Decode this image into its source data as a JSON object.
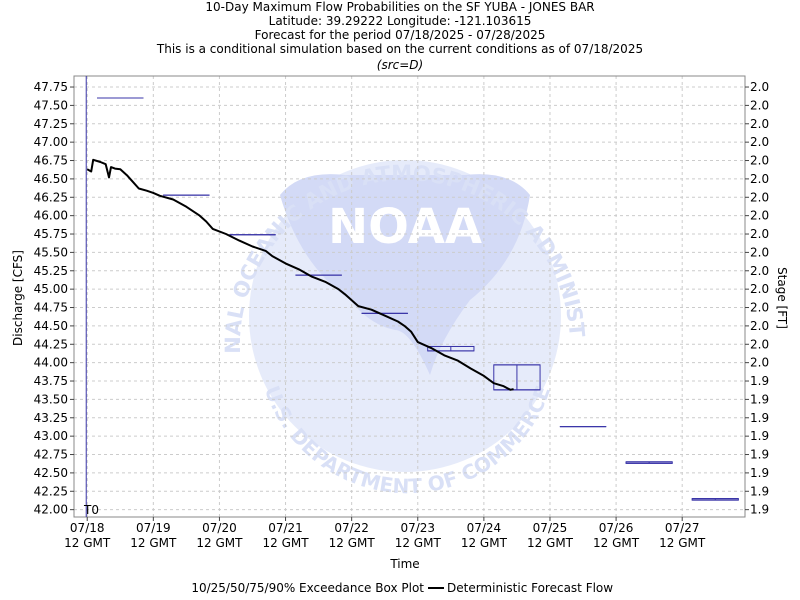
{
  "chart_data": {
    "type": "line",
    "title_lines": [
      "10-Day Maximum Flow Probabilities on the SF YUBA - JONES BAR",
      "Latitude: 39.29222 Longitude: -121.103615",
      "Forecast for the period 07/18/2025 - 07/28/2025",
      "This is a conditional simulation based on the current conditions as of 07/18/2025"
    ],
    "subtitle": "(src=D)",
    "xlabel": "Time",
    "ylabel": "Discharge [CFS]",
    "y2label": "Stage [FT]",
    "ylim": [
      41.9,
      47.9
    ],
    "xlim_days": [
      -0.2,
      9.95
    ],
    "grid": true,
    "t0_label": "T0",
    "x_ticks": [
      {
        "day": 0,
        "line1": "07/18",
        "line2": "12 GMT"
      },
      {
        "day": 1,
        "line1": "07/19",
        "line2": "12 GMT"
      },
      {
        "day": 2,
        "line1": "07/20",
        "line2": "12 GMT"
      },
      {
        "day": 3,
        "line1": "07/21",
        "line2": "12 GMT"
      },
      {
        "day": 4,
        "line1": "07/22",
        "line2": "12 GMT"
      },
      {
        "day": 5,
        "line1": "07/23",
        "line2": "12 GMT"
      },
      {
        "day": 6,
        "line1": "07/24",
        "line2": "12 GMT"
      },
      {
        "day": 7,
        "line1": "07/25",
        "line2": "12 GMT"
      },
      {
        "day": 8,
        "line1": "07/26",
        "line2": "12 GMT"
      },
      {
        "day": 9,
        "line1": "07/27",
        "line2": "12 GMT"
      }
    ],
    "y_ticks": [
      "42.00",
      "42.25",
      "42.50",
      "42.75",
      "43.00",
      "43.25",
      "43.50",
      "43.75",
      "44.00",
      "44.25",
      "44.50",
      "44.75",
      "45.00",
      "45.25",
      "45.50",
      "45.75",
      "46.00",
      "46.25",
      "46.50",
      "46.75",
      "47.00",
      "47.25",
      "47.50",
      "47.75"
    ],
    "y2_ticks": [
      "1.9",
      "1.9",
      "1.9",
      "1.9",
      "1.9",
      "1.9",
      "1.9",
      "1.9",
      "2.0",
      "2.0",
      "2.0",
      "2.0",
      "2.0",
      "2.0",
      "2.0",
      "2.0",
      "2.0",
      "2.0",
      "2.0",
      "2.0",
      "2.0",
      "2.0",
      "2.0",
      "2.0"
    ],
    "exceedance_boxes": [
      {
        "day_start": 0.15,
        "day_end": 0.85,
        "p10": 47.6,
        "p25": 47.6,
        "p50": 47.6,
        "p75": 47.6,
        "p90": 47.6
      },
      {
        "day_start": 1.15,
        "day_end": 1.85,
        "p10": 46.28,
        "p25": 46.28,
        "p50": 46.28,
        "p75": 46.28,
        "p90": 46.28
      },
      {
        "day_start": 2.15,
        "day_end": 2.85,
        "p10": 45.74,
        "p25": 45.74,
        "p50": 45.74,
        "p75": 45.74,
        "p90": 45.74
      },
      {
        "day_start": 3.15,
        "day_end": 3.85,
        "p10": 45.19,
        "p25": 45.19,
        "p50": 45.19,
        "p75": 45.19,
        "p90": 45.19
      },
      {
        "day_start": 4.15,
        "day_end": 4.85,
        "p10": 44.67,
        "p25": 44.67,
        "p50": 44.67,
        "p75": 44.67,
        "p90": 44.67
      },
      {
        "day_start": 5.15,
        "day_end": 5.85,
        "p10": 44.16,
        "p25": 44.16,
        "p50": 44.22,
        "p75": 44.22,
        "p90": 44.22
      },
      {
        "day_start": 6.15,
        "day_end": 6.85,
        "p10": 43.63,
        "p25": 43.63,
        "p50": 43.63,
        "p75": 43.97,
        "p90": 43.97
      },
      {
        "day_start": 7.15,
        "day_end": 7.85,
        "p10": 43.13,
        "p25": 43.13,
        "p50": 43.13,
        "p75": 43.13,
        "p90": 43.13
      },
      {
        "day_start": 8.15,
        "day_end": 8.85,
        "p10": 42.63,
        "p25": 42.63,
        "p50": 42.65,
        "p75": 42.65,
        "p90": 42.65
      },
      {
        "day_start": 9.15,
        "day_end": 9.85,
        "p10": 42.13,
        "p25": 42.13,
        "p50": 42.15,
        "p75": 42.15,
        "p90": 42.15
      }
    ],
    "deterministic_flow": [
      [
        0.0,
        46.63
      ],
      [
        0.06,
        46.6
      ],
      [
        0.09,
        46.76
      ],
      [
        0.2,
        46.73
      ],
      [
        0.28,
        46.7
      ],
      [
        0.33,
        46.52
      ],
      [
        0.36,
        46.66
      ],
      [
        0.42,
        46.64
      ],
      [
        0.5,
        46.63
      ],
      [
        0.6,
        46.55
      ],
      [
        0.7,
        46.45
      ],
      [
        0.78,
        46.37
      ],
      [
        0.9,
        46.34
      ],
      [
        1.0,
        46.31
      ],
      [
        1.1,
        46.27
      ],
      [
        1.3,
        46.22
      ],
      [
        1.5,
        46.12
      ],
      [
        1.7,
        46.0
      ],
      [
        1.8,
        45.92
      ],
      [
        1.9,
        45.82
      ],
      [
        2.1,
        45.75
      ],
      [
        2.3,
        45.66
      ],
      [
        2.5,
        45.58
      ],
      [
        2.7,
        45.52
      ],
      [
        2.8,
        45.45
      ],
      [
        3.0,
        45.35
      ],
      [
        3.2,
        45.27
      ],
      [
        3.4,
        45.17
      ],
      [
        3.6,
        45.1
      ],
      [
        3.8,
        45.0
      ],
      [
        3.9,
        44.93
      ],
      [
        4.0,
        44.85
      ],
      [
        4.1,
        44.77
      ],
      [
        4.3,
        44.72
      ],
      [
        4.5,
        44.64
      ],
      [
        4.7,
        44.56
      ],
      [
        4.8,
        44.5
      ],
      [
        4.9,
        44.42
      ],
      [
        5.0,
        44.28
      ],
      [
        5.2,
        44.2
      ],
      [
        5.4,
        44.1
      ],
      [
        5.6,
        44.03
      ],
      [
        5.8,
        43.92
      ],
      [
        6.0,
        43.82
      ],
      [
        6.15,
        43.72
      ],
      [
        6.3,
        43.68
      ],
      [
        6.4,
        43.63
      ],
      [
        6.45,
        43.64
      ]
    ]
  },
  "legend": {
    "box_label": "10/25/50/75/90% Exceedance Box Plot",
    "line_label": "Deterministic Forecast Flow"
  },
  "watermark": {
    "agency_arc": "NATIONAL OCEANIC AND ATMOSPHERIC ADMINISTRATION",
    "dept_arc": "U.S. DEPARTMENT OF COMMERCE",
    "center": "NOAA",
    "color": "#dde4f8",
    "accent": "#c9d2f4"
  },
  "colors": {
    "box": "#3a35a8",
    "line": "#000000",
    "grid": "#cccccc",
    "t0_line": "#3a35a8"
  }
}
